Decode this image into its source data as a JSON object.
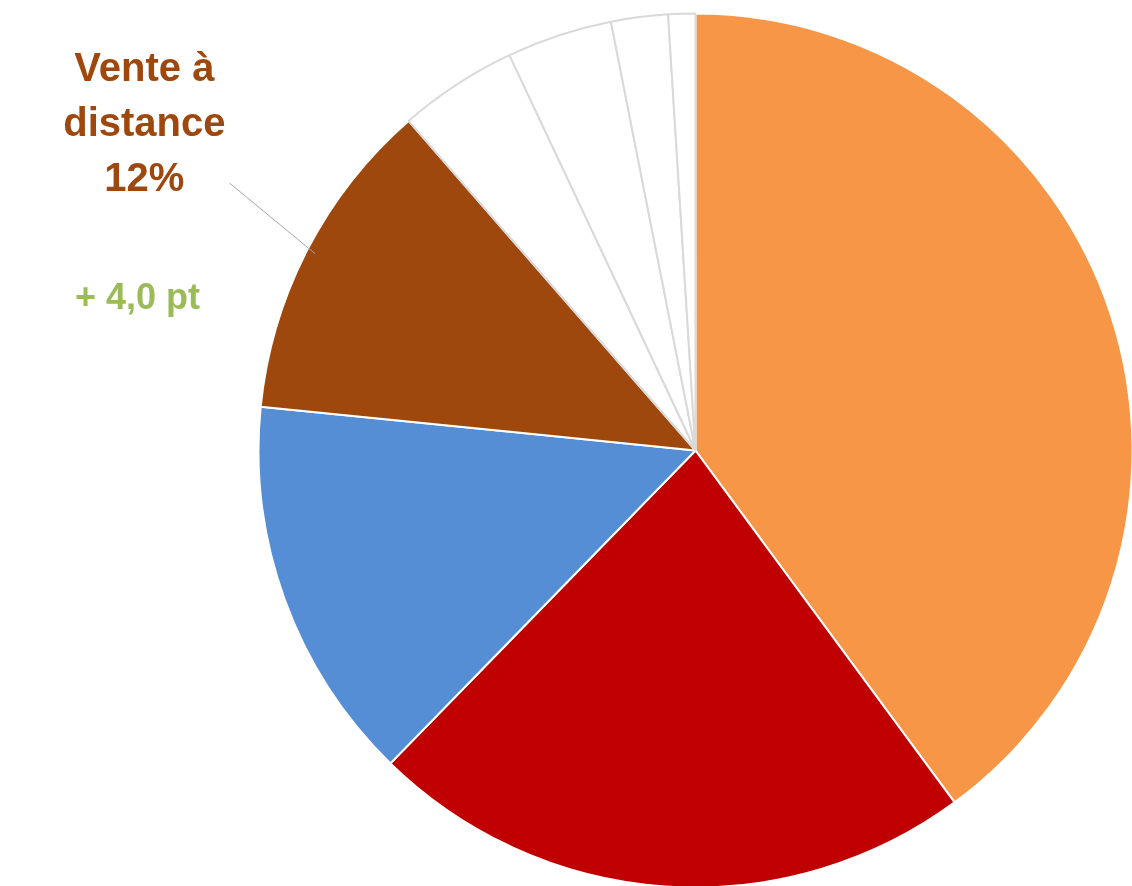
{
  "chart_data": {
    "type": "pie",
    "categories": [
      null,
      null,
      null,
      "Vente à distance",
      null,
      null,
      null,
      null
    ],
    "values": [
      39.9,
      22.4,
      14.3,
      12,
      4.4,
      3.9,
      2.1,
      1.0
    ],
    "colors": [
      "#f79646",
      "#c00000",
      "#558ed5",
      "#9e480e",
      "#ffffff",
      "#ffffff",
      "#ffffff",
      "#ffffff"
    ],
    "value_labels": [
      null,
      null,
      null,
      "12%",
      null,
      null,
      null,
      null
    ],
    "annotations": [
      "+ 4,0 pt"
    ]
  }
}
